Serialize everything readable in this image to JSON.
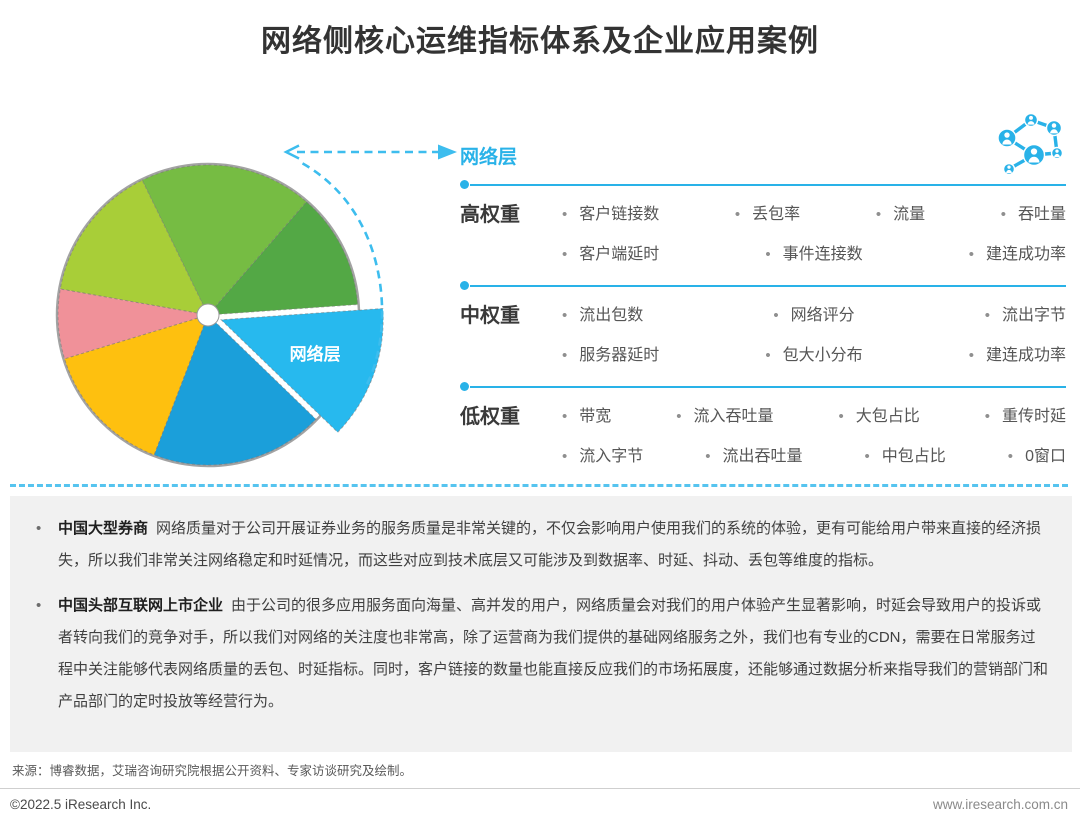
{
  "title": "网络侧核心运维指标体系及企业应用案例",
  "colors": {
    "accent_cyan": "#29b2e8",
    "pie_ring_gray": "#a3a3a3"
  },
  "chart_data": {
    "type": "pie",
    "title": "",
    "legend_position": "none",
    "donut_hole": true,
    "slices": [
      {
        "label": "网络层",
        "color": "#27b9ee",
        "start_deg": -44,
        "end_deg": 4,
        "percent_est": 13.3,
        "exploded": true
      },
      {
        "label": "",
        "color": "#53a845",
        "start_deg": 4,
        "end_deg": 49,
        "percent_est": 12.5,
        "exploded": false
      },
      {
        "label": "",
        "color": "#76bc43",
        "start_deg": 49,
        "end_deg": 116,
        "percent_est": 18.6,
        "exploded": false
      },
      {
        "label": "",
        "color": "#a8ce38",
        "start_deg": 116,
        "end_deg": 170,
        "percent_est": 15.0,
        "exploded": false
      },
      {
        "label": "",
        "color": "#f09199",
        "start_deg": 170,
        "end_deg": 197,
        "percent_est": 7.5,
        "exploded": false
      },
      {
        "label": "",
        "color": "#fec00f",
        "start_deg": 197,
        "end_deg": 249,
        "percent_est": 14.4,
        "exploded": false
      },
      {
        "label": "",
        "color": "#1b9fda",
        "start_deg": 249,
        "end_deg": 316,
        "percent_est": 18.6,
        "exploded": false
      }
    ]
  },
  "panel": {
    "header": "网络层",
    "icon": "network-people-icon",
    "sections": [
      {
        "label": "高权重",
        "rows": [
          [
            "客户链接数",
            "丢包率",
            "流量",
            "吞吐量"
          ],
          [
            "客户端延时",
            "事件连接数",
            "建连成功率"
          ]
        ]
      },
      {
        "label": "中权重",
        "rows": [
          [
            "流出包数",
            "网络评分",
            "流出字节"
          ],
          [
            "服务器延时",
            "包大小分布",
            "建连成功率"
          ]
        ]
      },
      {
        "label": "低权重",
        "rows": [
          [
            "带宽",
            "流入吞吐量",
            "大包占比",
            "重传时延"
          ],
          [
            "流入字节",
            "流出吞吐量",
            "中包占比",
            "0窗口"
          ]
        ]
      }
    ]
  },
  "cases": [
    {
      "company": "中国大型券商",
      "text": "网络质量对于公司开展证券业务的服务质量是非常关键的，不仅会影响用户使用我们的系统的体验，更有可能给用户带来直接的经济损失，所以我们非常关注网络稳定和时延情况，而这些对应到技术底层又可能涉及到数据率、时延、抖动、丢包等维度的指标。"
    },
    {
      "company": "中国头部互联网上市企业",
      "text": "由于公司的很多应用服务面向海量、高并发的用户，网络质量会对我们的用户体验产生显著影响，时延会导致用户的投诉或者转向我们的竞争对手，所以我们对网络的关注度也非常高，除了运营商为我们提供的基础网络服务之外，我们也有专业的CDN，需要在日常服务过程中关注能够代表网络质量的丢包、时延指标。同时，客户链接的数量也能直接反应我们的市场拓展度，还能够通过数据分析来指导我们的营销部门和产品部门的定时投放等经营行为。"
    }
  ],
  "source": "来源：博睿数据，艾瑞咨询研究院根据公开资料、专家访谈研究及绘制。",
  "footer": {
    "left": "©2022.5 iResearch Inc.",
    "right": "www.iresearch.com.cn"
  }
}
